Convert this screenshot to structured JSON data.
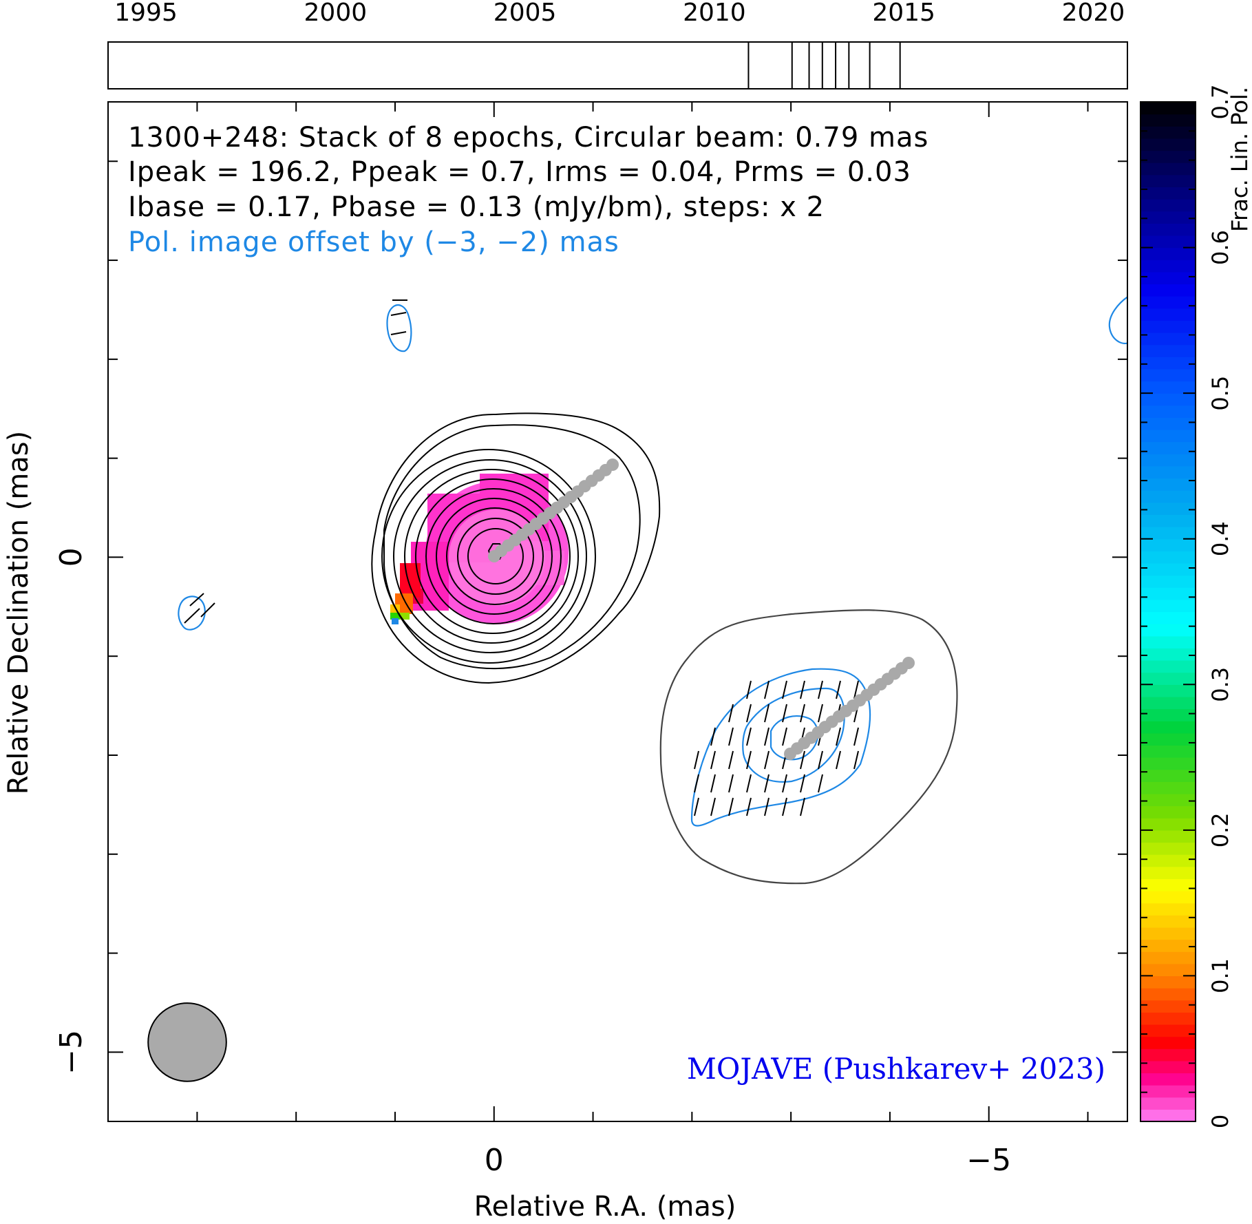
{
  "chart_data": {
    "type": "contour-image",
    "timeline": {
      "xlim": [
        1994,
        2020.9
      ],
      "ticks": [
        1995,
        2000,
        2005,
        2010,
        2015,
        2020
      ],
      "epochs": [
        2010.9,
        2012.05,
        2012.5,
        2012.85,
        2013.2,
        2013.55,
        2014.1,
        2014.9
      ]
    },
    "map": {
      "xlabel": "Relative R.A. (mas)",
      "ylabel": "Relative Declination (mas)",
      "xlim": [
        3.9,
        -6.4
      ],
      "ylim": [
        -5.7,
        4.6
      ],
      "xticks": [
        {
          "v": 0,
          "label": "0"
        },
        {
          "v": -5,
          "label": "−5"
        }
      ],
      "yticks": [
        {
          "v": 0,
          "label": "0"
        },
        {
          "v": -5,
          "label": "−5"
        }
      ],
      "minor_x": [
        3,
        2,
        1,
        -1,
        -2,
        -3,
        -4,
        -6
      ],
      "minor_y": [
        4,
        3,
        2,
        1,
        -1,
        -2,
        -3,
        -4
      ],
      "beam_circle_diameter_mas": 0.79,
      "beam_center": [
        3.1,
        -4.9
      ]
    },
    "annotations": {
      "line1": "1300+248: Stack of 8 epochs, Circular beam: 0.79 mas",
      "line2": "Ipeak = 196.2, Ppeak = 0.7, Irms = 0.04, Prms = 0.03",
      "line3": "Ibase = 0.17, Pbase = 0.13 (mJy/bm), steps: x 2",
      "line4": "Pol. image offset by (−3, −2) mas",
      "credit": "MOJAVE (Pushkarev+ 2023)"
    },
    "colorbar": {
      "label": "Frac. Lin. Pol.",
      "range": [
        0,
        0.7
      ],
      "ticks": [
        {
          "v": 0,
          "label": "0"
        },
        {
          "v": 0.1,
          "label": "0.1"
        },
        {
          "v": 0.2,
          "label": "0.2"
        },
        {
          "v": 0.3,
          "label": "0.3"
        },
        {
          "v": 0.4,
          "label": "0.4"
        },
        {
          "v": 0.5,
          "label": "0.5"
        },
        {
          "v": 0.6,
          "label": "0.6"
        },
        {
          "v": 0.7,
          "label": "0.7"
        }
      ]
    },
    "colors": {
      "total_intensity_contours": "#000000",
      "polarization_contours": "#1e88e5",
      "pol_lowest_contour": "#444444",
      "ridge_line": "#a9a9a9",
      "credit_text": "#0000ee",
      "offset_text": "#1e88e5"
    }
  }
}
